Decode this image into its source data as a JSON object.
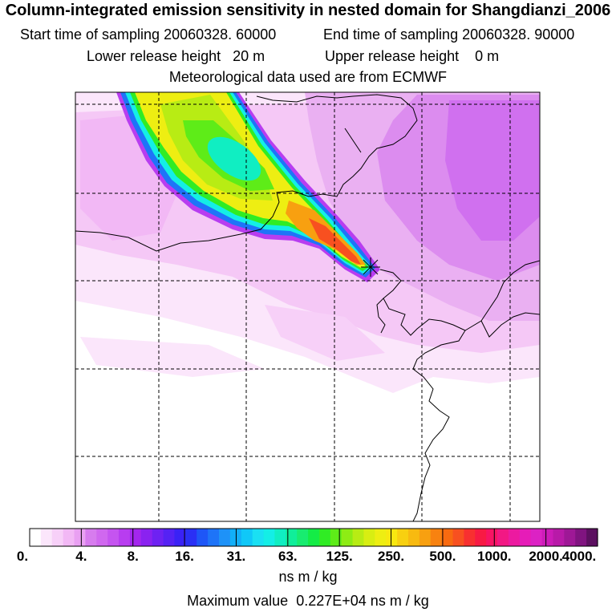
{
  "chart_data": {
    "type": "heatmap",
    "title": "Column-integrated emission sensitivity in nested domain for Shangdianzi_2006",
    "start_label": "Start time of sampling",
    "start_value": "20060328. 60000",
    "end_label": "End time of sampling",
    "end_value": "20060328. 90000",
    "lower_label": "Lower release height",
    "lower_value": "20 m",
    "upper_label": "Upper release height",
    "upper_value": "0 m",
    "met_text": "Meteorological data used are from ECMWF",
    "colorbar": {
      "ticks": [
        "0.",
        "4.",
        "8.",
        "16.",
        "31.",
        "63.",
        "125.",
        "250.",
        "500.",
        "1000.",
        "2000.",
        "4000."
      ],
      "colors": [
        "#ffffff",
        "#fbe6fb",
        "#f7d0f8",
        "#f2b8f5",
        "#e9a0f2",
        "#d77cee",
        "#d068ef",
        "#c554f0",
        "#b83df0",
        "#a326ee",
        "#8a22f0",
        "#6e22f2",
        "#5522f4",
        "#3a22f6",
        "#2a30f5",
        "#1e56f7",
        "#1e74f8",
        "#1e92f8",
        "#12aff8",
        "#10c8f8",
        "#1ae0f3",
        "#14eee6",
        "#10eec2",
        "#10ee9a",
        "#18ec70",
        "#14ec46",
        "#30ec24",
        "#5eec18",
        "#8eec14",
        "#b8ec14",
        "#d8ee12",
        "#eeee12",
        "#f8e810",
        "#f8d010",
        "#f8ba10",
        "#f8a010",
        "#f88210",
        "#f86a10",
        "#f85020",
        "#f83030",
        "#f81a44",
        "#f81464",
        "#f21884",
        "#ec1aa0",
        "#e61cb8",
        "#dc22c4",
        "#cc1cb8",
        "#b81aa8",
        "#9e1896",
        "#801480",
        "#5c1060"
      ]
    },
    "units": "ns m / kg",
    "max_label": "Maximum value",
    "max_value": "0.227E+04 ns m / kg"
  }
}
